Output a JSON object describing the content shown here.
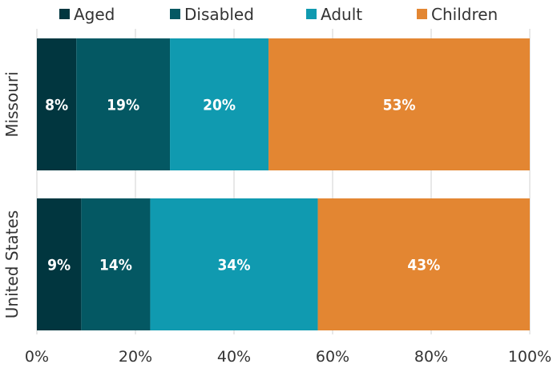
{
  "chart_data": {
    "type": "bar",
    "orientation": "horizontal",
    "stacked": true,
    "categories": [
      "Missouri",
      "United States"
    ],
    "series": [
      {
        "name": "Aged",
        "values": [
          8,
          9
        ],
        "color": "#01363f"
      },
      {
        "name": "Disabled",
        "values": [
          19,
          14
        ],
        "color": "#045863"
      },
      {
        "name": "Adult",
        "values": [
          20,
          34
        ],
        "color": "#109ab0"
      },
      {
        "name": "Children",
        "values": [
          53,
          43
        ],
        "color": "#e38632"
      }
    ],
    "data_labels": [
      [
        "8%",
        "19%",
        "20%",
        "53%"
      ],
      [
        "9%",
        "14%",
        "34%",
        "43%"
      ]
    ],
    "xlim": [
      0,
      100
    ],
    "xticks": [
      0,
      20,
      40,
      60,
      80,
      100
    ],
    "xtick_labels": [
      "0%",
      "20%",
      "40%",
      "60%",
      "80%",
      "100%"
    ],
    "grid": true,
    "legend_position": "top",
    "title": "",
    "xlabel": "",
    "ylabel": ""
  }
}
